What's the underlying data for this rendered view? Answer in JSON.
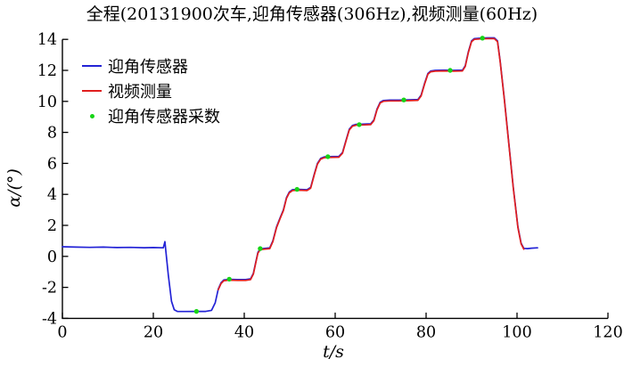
{
  "chart_data": {
    "type": "line",
    "title": "全程(20131900次车,迎角传感器(306Hz),视频测量(60Hz)",
    "xlabel": "t/s",
    "ylabel": "α/(°)",
    "xlim": [
      0,
      120
    ],
    "ylim": [
      -4,
      14
    ],
    "xticks": [
      0,
      20,
      40,
      60,
      80,
      100,
      120
    ],
    "yticks": [
      -4,
      -2,
      0,
      2,
      4,
      6,
      8,
      10,
      12,
      14
    ],
    "grid": false,
    "legend": {
      "position": "top-left-inside",
      "items": [
        {
          "label": "迎角传感器",
          "type": "line",
          "color": "#2323d6"
        },
        {
          "label": "视频测量",
          "type": "line",
          "color": "#e01f1f"
        },
        {
          "label": "迎角传感器采数",
          "type": "marker",
          "color": "#17d417"
        }
      ]
    },
    "series": [
      {
        "name": "迎角传感器",
        "color": "#2323d6",
        "kind": "line",
        "points": [
          [
            0,
            0.62
          ],
          [
            3,
            0.6
          ],
          [
            6,
            0.58
          ],
          [
            9,
            0.6
          ],
          [
            12,
            0.57
          ],
          [
            15,
            0.58
          ],
          [
            18,
            0.56
          ],
          [
            20,
            0.57
          ],
          [
            22.2,
            0.55
          ],
          [
            22.55,
            0.95
          ],
          [
            22.8,
            0.2
          ],
          [
            23.3,
            -1.2
          ],
          [
            24,
            -2.9
          ],
          [
            24.6,
            -3.45
          ],
          [
            25.3,
            -3.55
          ],
          [
            27,
            -3.56
          ],
          [
            29.5,
            -3.55
          ],
          [
            31.5,
            -3.55
          ],
          [
            32.8,
            -3.48
          ],
          [
            33.6,
            -3
          ],
          [
            34.3,
            -2.1
          ],
          [
            34.9,
            -1.7
          ],
          [
            35.5,
            -1.52
          ],
          [
            36.7,
            -1.48
          ],
          [
            38.5,
            -1.5
          ],
          [
            40.3,
            -1.5
          ],
          [
            41.4,
            -1.45
          ],
          [
            42,
            -1.1
          ],
          [
            42.5,
            -0.4
          ],
          [
            43,
            0.25
          ],
          [
            43.5,
            0.48
          ],
          [
            44.5,
            0.52
          ],
          [
            45.6,
            0.55
          ],
          [
            46.3,
            1
          ],
          [
            47.1,
            1.9
          ],
          [
            47.9,
            2.5
          ],
          [
            48.6,
            3
          ],
          [
            49.3,
            3.8
          ],
          [
            49.9,
            4.15
          ],
          [
            50.6,
            4.3
          ],
          [
            52,
            4.32
          ],
          [
            53.8,
            4.3
          ],
          [
            54.6,
            4.45
          ],
          [
            55.4,
            5.3
          ],
          [
            56.1,
            6
          ],
          [
            56.8,
            6.32
          ],
          [
            57.6,
            6.42
          ],
          [
            59.5,
            6.44
          ],
          [
            60.8,
            6.45
          ],
          [
            61.6,
            6.7
          ],
          [
            62.4,
            7.5
          ],
          [
            63.1,
            8.2
          ],
          [
            63.8,
            8.45
          ],
          [
            64.6,
            8.52
          ],
          [
            66,
            8.53
          ],
          [
            67.8,
            8.55
          ],
          [
            68.5,
            8.8
          ],
          [
            69.2,
            9.5
          ],
          [
            69.9,
            9.95
          ],
          [
            70.6,
            10.06
          ],
          [
            72,
            10.08
          ],
          [
            74,
            10.08
          ],
          [
            76,
            10.1
          ],
          [
            78.2,
            10.12
          ],
          [
            78.9,
            10.4
          ],
          [
            79.7,
            11.2
          ],
          [
            80.4,
            11.8
          ],
          [
            81,
            11.96
          ],
          [
            82,
            12
          ],
          [
            84,
            12.02
          ],
          [
            86,
            12
          ],
          [
            88,
            12.02
          ],
          [
            88.6,
            12.3
          ],
          [
            89.3,
            13.2
          ],
          [
            90,
            13.9
          ],
          [
            90.6,
            14.05
          ],
          [
            92,
            14.08
          ],
          [
            93.5,
            14.1
          ],
          [
            95,
            14.1
          ],
          [
            95.7,
            13.9
          ],
          [
            96.3,
            12.6
          ],
          [
            97.2,
            10.2
          ],
          [
            98.2,
            7.3
          ],
          [
            99.2,
            4.4
          ],
          [
            100.2,
            1.9
          ],
          [
            100.9,
            0.85
          ],
          [
            101.5,
            0.52
          ],
          [
            102.3,
            0.5
          ],
          [
            103.2,
            0.53
          ],
          [
            104.5,
            0.55
          ]
        ]
      },
      {
        "name": "视频测量",
        "color": "#e01f1f",
        "kind": "line",
        "overlaps_series": "迎角传感器",
        "t_range": [
          34.3,
          101.9
        ]
      },
      {
        "name": "迎角传感器采数",
        "color": "#17d417",
        "kind": "scatter",
        "points": [
          [
            29.5,
            -3.55
          ],
          [
            36.7,
            -1.47
          ],
          [
            43.5,
            0.5
          ],
          [
            51.6,
            4.32
          ],
          [
            58.4,
            6.43
          ],
          [
            65.3,
            8.5
          ],
          [
            75.1,
            10.09
          ],
          [
            85.3,
            12.0
          ],
          [
            92.4,
            14.08
          ]
        ]
      }
    ],
    "axis_color": "#000000",
    "tick_style": "inward"
  }
}
